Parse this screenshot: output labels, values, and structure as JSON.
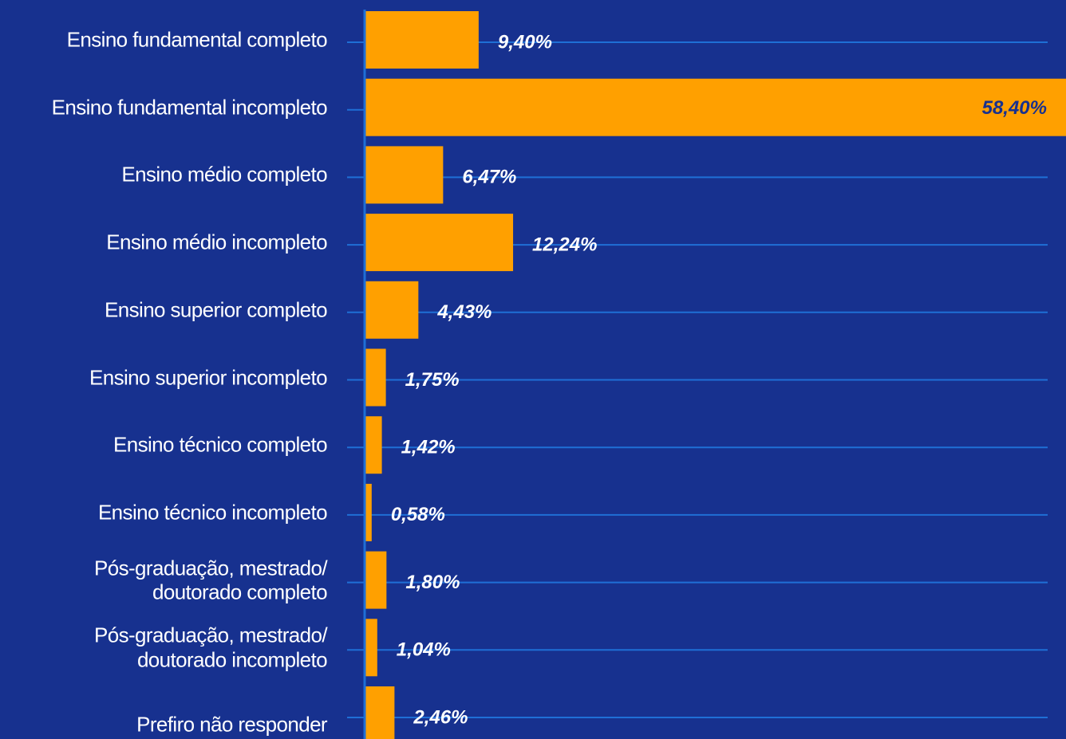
{
  "chart_data": {
    "type": "bar",
    "orientation": "horizontal",
    "categories": [
      "Ensino fundamental completo",
      "Ensino fundamental incompleto",
      "Ensino médio completo",
      "Ensino médio incompleto",
      "Ensino superior completo",
      "Ensino superior incompleto",
      "Ensino técnico completo",
      "Ensino técnico incompleto",
      "Pós-graduação, mestrado/\ndoutorado completo",
      "Pós-graduação, mestrado/\ndoutorado incompleto",
      "Prefiro não responder"
    ],
    "values": [
      9.4,
      58.4,
      6.47,
      12.24,
      4.43,
      1.75,
      1.42,
      0.58,
      1.8,
      1.04,
      2.46
    ],
    "value_labels": [
      "9,40%",
      "58,40%",
      "6,47%",
      "12,24%",
      "4,43%",
      "1,75%",
      "1,42%",
      "0,58%",
      "1,80%",
      "1,04%",
      "2,46%"
    ],
    "color": "#ffa000",
    "grid": true
  }
}
